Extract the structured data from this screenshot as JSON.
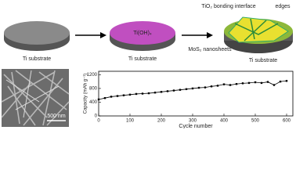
{
  "schematic": {
    "step1_label": "Ti substrate",
    "step2_coating": "Ti(OH)₄",
    "step2_label": "Ti substrate",
    "step3_interface": "TiO₂ bonding interface",
    "step3_edges": "edges",
    "step3_nanosheets": "MoS₂ nanosheets",
    "step3_label": "Ti substrate"
  },
  "sem": {
    "scale_bar": "500 nm"
  },
  "chart_data": {
    "type": "line",
    "xlabel": "Cycle number",
    "ylabel": "Capacity (mAh g⁻¹)",
    "color": "#000000",
    "x": [
      0,
      20,
      40,
      60,
      80,
      100,
      120,
      140,
      160,
      180,
      200,
      220,
      240,
      260,
      280,
      300,
      320,
      340,
      360,
      380,
      400,
      420,
      440,
      460,
      480,
      500,
      520,
      540,
      560,
      580,
      600
    ],
    "values": [
      480,
      520,
      560,
      580,
      600,
      620,
      640,
      650,
      660,
      680,
      700,
      720,
      740,
      760,
      780,
      800,
      820,
      830,
      860,
      880,
      920,
      900,
      930,
      950,
      960,
      980,
      960,
      990,
      900,
      1000,
      1020
    ],
    "xlim": [
      0,
      620
    ],
    "ylim": [
      0,
      1300
    ],
    "xticks": [
      0,
      100,
      200,
      300,
      400,
      500,
      600
    ],
    "yticks": [
      0,
      400,
      800,
      1200
    ]
  }
}
